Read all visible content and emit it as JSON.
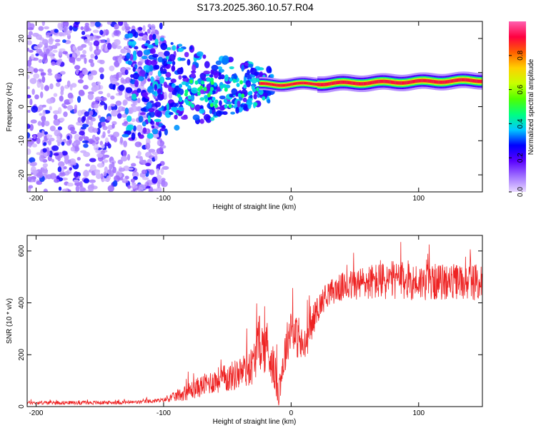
{
  "title": "S173.2025.360.10.57.R04",
  "chart_data": [
    {
      "type": "heatmap",
      "name": "spectrogram",
      "title": "S173.2025.360.10.57.R04",
      "xlabel": "Height of straight line (km)",
      "ylabel": "Frequency (Hz)",
      "xlim": [
        -207,
        150
      ],
      "ylim": [
        -25,
        25
      ],
      "xticks": [
        -200,
        -100,
        0,
        100
      ],
      "yticks": [
        -20,
        -10,
        0,
        10,
        20
      ],
      "colorbar": {
        "label": "Normalized spectral amplitude",
        "range": [
          0,
          1
        ],
        "ticks": [
          "0.0",
          "0.2",
          "0.4",
          "0.6",
          "0.8"
        ],
        "colors": [
          "#e8d8ff",
          "#a070ff",
          "#5a00ff",
          "#0000ff",
          "#00c8ff",
          "#00ff80",
          "#50ff00",
          "#c8ff00",
          "#ffd000",
          "#ff6000",
          "#ff0040",
          "#ff60b0"
        ]
      },
      "description_regions": [
        {
          "x_range": [
            -207,
            -100
          ],
          "freq_range": [
            -25,
            25
          ],
          "amplitude": 0.1
        },
        {
          "x_range": [
            -100,
            -20
          ],
          "freq_range": [
            -2,
            14
          ],
          "amplitude": 0.25
        },
        {
          "x_range": [
            -20,
            150
          ],
          "freq_center": [
            6,
            8
          ],
          "amplitude": 0.9
        }
      ]
    },
    {
      "type": "line",
      "name": "snr",
      "xlabel": "Height of straight line (km)",
      "ylabel": "SNR (10 * v/v)",
      "xlim": [
        -207,
        150
      ],
      "ylim": [
        0,
        660
      ],
      "xticks": [
        -200,
        -100,
        0,
        100
      ],
      "yticks": [
        0,
        200,
        400,
        600
      ],
      "color": "#ee2222",
      "series": [
        {
          "name": "SNR",
          "x": [
            -207,
            -180,
            -150,
            -120,
            -100,
            -90,
            -80,
            -70,
            -60,
            -50,
            -40,
            -30,
            -25,
            -20,
            -15,
            -10,
            -5,
            0,
            5,
            10,
            15,
            20,
            25,
            30,
            40,
            50,
            60,
            80,
            100,
            120,
            150
          ],
          "y": [
            15,
            15,
            15,
            17,
            25,
            40,
            60,
            80,
            100,
            110,
            130,
            160,
            250,
            220,
            180,
            60,
            200,
            320,
            260,
            220,
            300,
            370,
            410,
            440,
            460,
            470,
            480,
            485,
            480,
            480,
            480
          ],
          "noise": [
            10,
            10,
            10,
            10,
            12,
            30,
            50,
            60,
            70,
            80,
            90,
            110,
            150,
            140,
            130,
            90,
            120,
            120,
            110,
            100,
            90,
            80,
            70,
            70,
            80,
            90,
            100,
            110,
            100,
            100,
            100
          ]
        }
      ]
    }
  ]
}
